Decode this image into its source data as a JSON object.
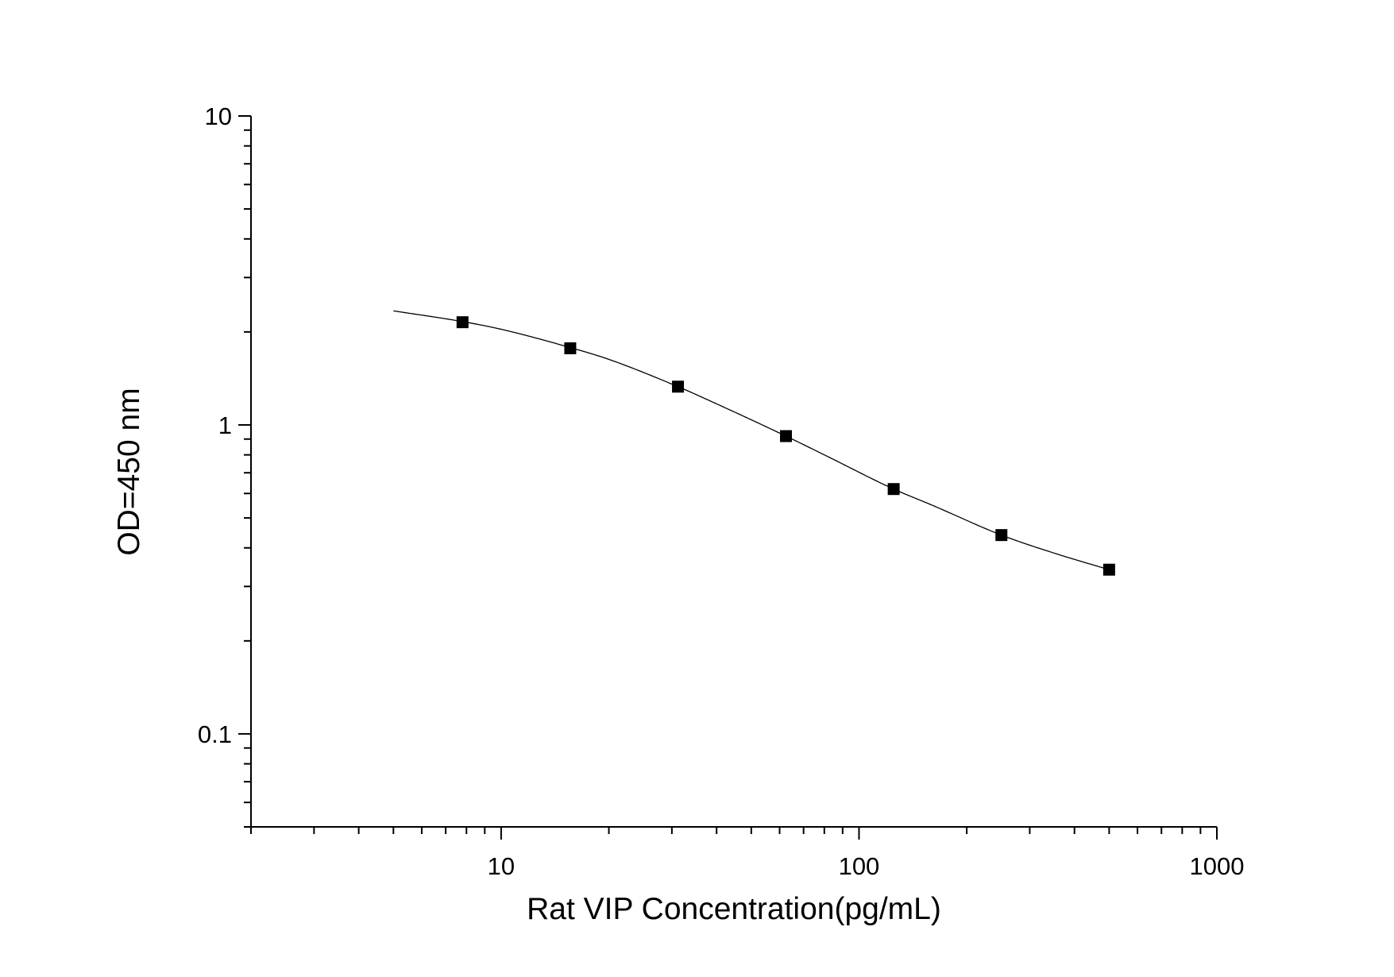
{
  "chart_data": {
    "type": "scatter",
    "title": "",
    "xlabel": "Rat VIP Concentration(pg/mL)",
    "ylabel": "OD=450 nm",
    "x_scale": "log",
    "y_scale": "log",
    "xlim": [
      2,
      1000
    ],
    "ylim": [
      0.05,
      10
    ],
    "x_ticks": [
      {
        "value": 10,
        "label": "10"
      },
      {
        "value": 100,
        "label": "100"
      },
      {
        "value": 1000,
        "label": "1000"
      }
    ],
    "y_ticks": [
      {
        "value": 0.1,
        "label": "0.1"
      },
      {
        "value": 1,
        "label": "1"
      },
      {
        "value": 10,
        "label": "10"
      }
    ],
    "grid": false,
    "legend": "none",
    "series": [
      {
        "marker": "square",
        "color": "#000000",
        "points": [
          {
            "x": 7.8,
            "y": 2.15
          },
          {
            "x": 15.6,
            "y": 1.77
          },
          {
            "x": 31.2,
            "y": 1.33
          },
          {
            "x": 62.5,
            "y": 0.92
          },
          {
            "x": 125,
            "y": 0.62
          },
          {
            "x": 250,
            "y": 0.44
          },
          {
            "x": 500,
            "y": 0.34
          }
        ]
      }
    ],
    "fit_curve": {
      "color": "#000000",
      "x_range": [
        5,
        500
      ],
      "points": [
        {
          "x": 5,
          "y": 2.34
        },
        {
          "x": 7.8,
          "y": 2.16
        },
        {
          "x": 10,
          "y": 2.04
        },
        {
          "x": 15.6,
          "y": 1.78
        },
        {
          "x": 20,
          "y": 1.63
        },
        {
          "x": 31.2,
          "y": 1.33
        },
        {
          "x": 40,
          "y": 1.17
        },
        {
          "x": 62.5,
          "y": 0.92
        },
        {
          "x": 80,
          "y": 0.8
        },
        {
          "x": 125,
          "y": 0.62
        },
        {
          "x": 160,
          "y": 0.55
        },
        {
          "x": 250,
          "y": 0.44
        },
        {
          "x": 350,
          "y": 0.385
        },
        {
          "x": 500,
          "y": 0.34
        }
      ]
    }
  }
}
